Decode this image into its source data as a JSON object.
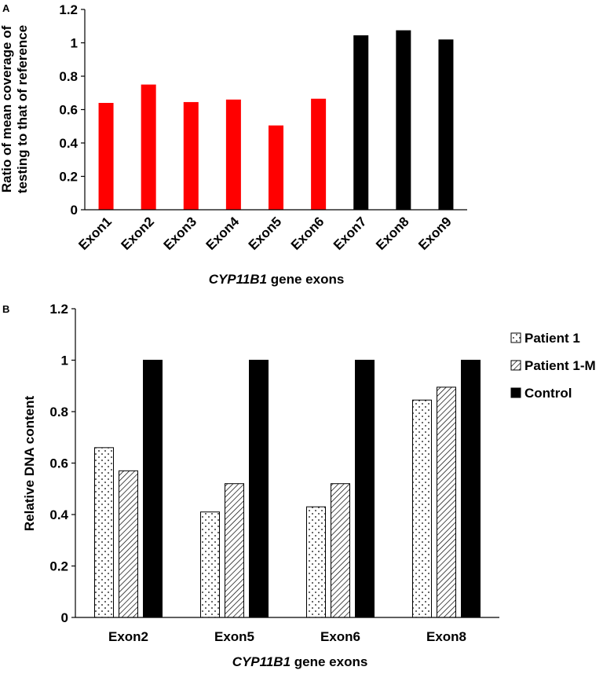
{
  "chart_data": [
    {
      "panel": "A",
      "type": "bar",
      "categories": [
        "Exon1",
        "Exon2",
        "Exon3",
        "Exon4",
        "Exon5",
        "Exon6",
        "Exon7",
        "Exon8",
        "Exon9"
      ],
      "values": [
        0.64,
        0.75,
        0.645,
        0.66,
        0.505,
        0.665,
        1.045,
        1.075,
        1.02
      ],
      "bar_colors": [
        "#ff0000",
        "#ff0000",
        "#ff0000",
        "#ff0000",
        "#ff0000",
        "#ff0000",
        "#000000",
        "#000000",
        "#000000"
      ],
      "ylabel_line1": "Ratio of mean coverage of",
      "ylabel_line2": "testing to that of reference",
      "xlabel_italic": "CYP11B1",
      "xlabel_rest": " gene exons",
      "ylim": [
        0,
        1.2
      ],
      "yticks": [
        0,
        0.2,
        0.4,
        0.6,
        0.8,
        1,
        1.2
      ],
      "ytick_labels": [
        "0",
        "0.2",
        "0.4",
        "0.6",
        "0.8",
        "1",
        "1.2"
      ],
      "grid": false
    },
    {
      "panel": "B",
      "type": "bar",
      "categories": [
        "Exon2",
        "Exon5",
        "Exon6",
        "Exon8"
      ],
      "series": [
        {
          "name": "Patient 1",
          "pattern": "dots",
          "values": [
            0.66,
            0.41,
            0.43,
            0.845
          ]
        },
        {
          "name": "Patient 1-M",
          "pattern": "hatch",
          "values": [
            0.57,
            0.52,
            0.52,
            0.895
          ]
        },
        {
          "name": "Control",
          "pattern": "solid",
          "values": [
            1,
            1,
            1,
            1
          ]
        }
      ],
      "ylabel": "Relative DNA content",
      "xlabel_italic": "CYP11B1",
      "xlabel_rest": " gene exons",
      "ylim": [
        0,
        1.2
      ],
      "yticks": [
        0,
        0.2,
        0.4,
        0.6,
        0.8,
        1,
        1.2
      ],
      "ytick_labels": [
        "0",
        "0.2",
        "0.4",
        "0.6",
        "0.8",
        "1",
        "1.2"
      ],
      "legend_position": "right",
      "grid": false
    }
  ],
  "colors": {
    "red": "#ff0000",
    "black": "#000000"
  }
}
